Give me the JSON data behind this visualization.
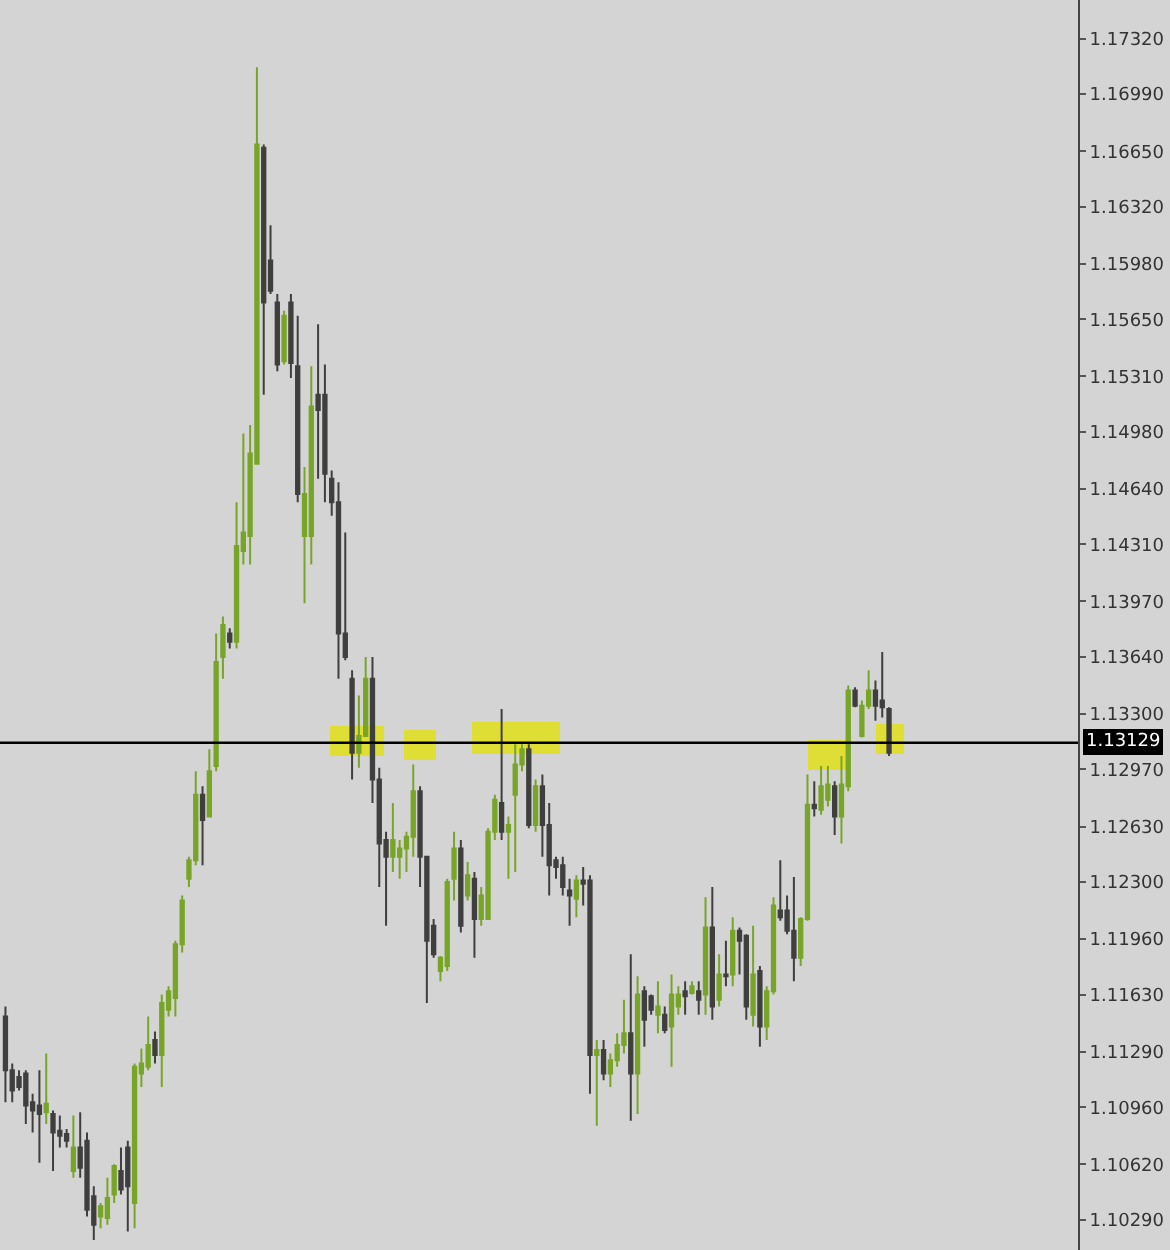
{
  "chart_data": {
    "type": "candlestick",
    "categories": [
      null,
      null,
      null,
      null,
      null,
      null,
      null,
      null,
      null,
      null,
      null,
      null,
      null,
      null,
      null,
      null,
      null,
      null,
      null,
      null,
      null,
      null,
      null,
      null,
      null,
      null,
      null,
      null,
      null,
      null,
      null,
      null,
      null,
      null,
      null,
      null,
      null,
      null,
      null,
      null,
      null,
      null,
      null,
      null,
      null,
      null,
      null,
      null,
      null,
      null,
      null,
      null,
      null,
      null,
      null,
      null,
      null,
      null,
      null,
      null,
      null,
      null,
      null,
      null,
      null,
      null,
      null,
      null,
      null,
      null,
      null,
      null,
      null,
      null,
      null,
      null,
      null,
      null,
      null,
      null,
      null,
      null,
      null,
      null,
      null,
      null,
      null,
      null,
      null,
      null,
      null,
      null,
      null,
      null,
      null,
      null,
      null,
      null,
      null,
      null,
      null,
      null,
      null,
      null,
      null,
      null,
      null,
      null,
      null,
      null,
      null,
      null,
      null,
      null,
      null,
      null,
      null,
      null,
      null,
      null,
      null,
      null,
      null,
      null,
      null,
      null,
      null,
      null,
      null,
      null,
      null,
      null,
      null,
      null,
      null,
      null,
      null,
      null,
      null,
      null,
      null,
      null,
      null,
      null,
      null,
      null,
      null,
      null,
      null,
      null,
      null,
      null,
      null,
      null,
      null,
      null,
      null,
      null
    ],
    "ohlc": [
      [
        1.115,
        1.1156,
        1.1099,
        1.1118
      ],
      [
        1.1118,
        1.1122,
        1.1099,
        1.1106
      ],
      [
        1.1114,
        1.1118,
        1.1106,
        1.1108
      ],
      [
        1.1116,
        1.1118,
        1.1086,
        1.1097
      ],
      [
        1.1099,
        1.1104,
        1.1081,
        1.1094
      ],
      [
        1.1097,
        1.1118,
        1.1063,
        1.1092
      ],
      [
        1.1093,
        1.1128,
        1.1086,
        1.1098
      ],
      [
        1.1092,
        1.1094,
        1.1058,
        1.1081
      ],
      [
        1.1082,
        1.1091,
        1.1072,
        1.1079
      ],
      [
        1.108,
        1.1083,
        1.1072,
        1.1076
      ],
      [
        1.1058,
        1.1091,
        1.1054,
        1.1072
      ],
      [
        1.1072,
        1.1093,
        1.1054,
        1.106
      ],
      [
        1.1076,
        1.1081,
        1.1031,
        1.1035
      ],
      [
        1.1043,
        1.1049,
        1.1017,
        1.1026
      ],
      [
        1.1031,
        1.1039,
        1.1024,
        1.1037
      ],
      [
        1.103,
        1.1054,
        1.1026,
        1.1042
      ],
      [
        1.1044,
        1.1062,
        1.1039,
        1.1061
      ],
      [
        1.1058,
        1.1072,
        1.1044,
        1.1047
      ],
      [
        1.1072,
        1.1076,
        1.1022,
        1.1049
      ],
      [
        1.1039,
        1.1122,
        1.1024,
        1.112
      ],
      [
        1.1116,
        1.1131,
        1.1108,
        1.1122
      ],
      [
        1.112,
        1.115,
        1.1118,
        1.1133
      ],
      [
        1.1136,
        1.1141,
        1.1122,
        1.1127
      ],
      [
        1.1127,
        1.1163,
        1.1108,
        1.1158
      ],
      [
        1.1154,
        1.1168,
        1.115,
        1.1165
      ],
      [
        1.1161,
        1.1195,
        1.115,
        1.1193
      ],
      [
        1.1193,
        1.1222,
        1.1188,
        1.1219
      ],
      [
        1.1232,
        1.1245,
        1.1227,
        1.1243
      ],
      [
        1.1243,
        1.1296,
        1.124,
        1.1282
      ],
      [
        1.1282,
        1.1287,
        1.124,
        1.1267
      ],
      [
        1.1269,
        1.1309,
        1.1269,
        1.1296
      ],
      [
        1.1299,
        1.1378,
        1.1296,
        1.1361
      ],
      [
        1.1364,
        1.1388,
        1.1351,
        1.1383
      ],
      [
        1.1378,
        1.1381,
        1.1369,
        1.1373
      ],
      [
        1.1373,
        1.1456,
        1.1369,
        1.143
      ],
      [
        1.1427,
        1.1497,
        1.1419,
        1.1438
      ],
      [
        1.1436,
        1.1502,
        1.1419,
        1.1485
      ],
      [
        1.1479,
        1.1715,
        1.1479,
        1.1669
      ],
      [
        1.1667,
        1.1669,
        1.152,
        1.1575
      ],
      [
        1.16,
        1.1621,
        1.158,
        1.1582
      ],
      [
        1.1575,
        1.158,
        1.1534,
        1.1538
      ],
      [
        1.154,
        1.157,
        1.1538,
        1.1567
      ],
      [
        1.1575,
        1.158,
        1.153,
        1.1539
      ],
      [
        1.1537,
        1.1567,
        1.1456,
        1.1461
      ],
      [
        1.1436,
        1.1477,
        1.1396,
        1.1461
      ],
      [
        1.1436,
        1.1537,
        1.1419,
        1.1513
      ],
      [
        1.152,
        1.1562,
        1.147,
        1.1511
      ],
      [
        1.152,
        1.1538,
        1.1456,
        1.1473
      ],
      [
        1.147,
        1.1475,
        1.1448,
        1.1456
      ],
      [
        1.1456,
        1.1468,
        1.1351,
        1.1378
      ],
      [
        1.1378,
        1.1438,
        1.1362,
        1.1364
      ],
      [
        1.1351,
        1.1356,
        1.1291,
        1.1307
      ],
      [
        1.1307,
        1.1341,
        1.1298,
        1.1317
      ],
      [
        1.1317,
        1.1364,
        1.1317,
        1.1351
      ],
      [
        1.1351,
        1.1364,
        1.1277,
        1.1291
      ],
      [
        1.1291,
        1.1298,
        1.1227,
        1.1253
      ],
      [
        1.1255,
        1.126,
        1.1204,
        1.1245
      ],
      [
        1.1245,
        1.1277,
        1.1236,
        1.1255
      ],
      [
        1.1245,
        1.1255,
        1.1232,
        1.125
      ],
      [
        1.125,
        1.126,
        1.1236,
        1.1257
      ],
      [
        1.1257,
        1.13,
        1.1245,
        1.1284
      ],
      [
        1.1284,
        1.1287,
        1.1227,
        1.1245
      ],
      [
        1.1245,
        1.1245,
        1.1158,
        1.1195
      ],
      [
        1.1204,
        1.1208,
        1.1185,
        1.1187
      ],
      [
        1.1177,
        1.1186,
        1.1171,
        1.1185
      ],
      [
        1.118,
        1.1232,
        1.1177,
        1.123
      ],
      [
        1.1232,
        1.126,
        1.1219,
        1.125
      ],
      [
        1.125,
        1.1255,
        1.12,
        1.1204
      ],
      [
        1.1222,
        1.1242,
        1.1219,
        1.1234
      ],
      [
        1.1232,
        1.1236,
        1.1185,
        1.1208
      ],
      [
        1.1208,
        1.1227,
        1.1204,
        1.1222
      ],
      [
        1.1208,
        1.1262,
        1.1208,
        1.126
      ],
      [
        1.126,
        1.1282,
        1.1255,
        1.1279
      ],
      [
        1.1277,
        1.1333,
        1.1255,
        1.126
      ],
      [
        1.126,
        1.1269,
        1.1232,
        1.1264
      ],
      [
        1.1282,
        1.1312,
        1.1236,
        1.13
      ],
      [
        1.13,
        1.1312,
        1.1296,
        1.1309
      ],
      [
        1.1309,
        1.1312,
        1.1262,
        1.1264
      ],
      [
        1.1264,
        1.1291,
        1.126,
        1.1287
      ],
      [
        1.1287,
        1.1294,
        1.1245,
        1.1264
      ],
      [
        1.1264,
        1.1277,
        1.1222,
        1.124
      ],
      [
        1.1243,
        1.1245,
        1.1232,
        1.1239
      ],
      [
        1.124,
        1.1245,
        1.1222,
        1.1227
      ],
      [
        1.1225,
        1.1232,
        1.1204,
        1.1222
      ],
      [
        1.122,
        1.1234,
        1.1209,
        1.1231
      ],
      [
        1.1231,
        1.1239,
        1.1216,
        1.1229
      ],
      [
        1.1231,
        1.1234,
        1.1104,
        1.1127
      ],
      [
        1.1127,
        1.1136,
        1.1085,
        1.113
      ],
      [
        1.113,
        1.1136,
        1.1112,
        1.1116
      ],
      [
        1.1116,
        1.1128,
        1.1108,
        1.1124
      ],
      [
        1.1124,
        1.114,
        1.112,
        1.1133
      ],
      [
        1.1133,
        1.116,
        1.1128,
        1.114
      ],
      [
        1.114,
        1.1187,
        1.1088,
        1.1116
      ],
      [
        1.1116,
        1.1174,
        1.1092,
        1.1163
      ],
      [
        1.1165,
        1.1168,
        1.1132,
        1.1148
      ],
      [
        1.1162,
        1.1163,
        1.1151,
        1.1154
      ],
      [
        1.1151,
        1.1171,
        1.114,
        1.1156
      ],
      [
        1.1151,
        1.1156,
        1.114,
        1.1142
      ],
      [
        1.1144,
        1.1175,
        1.112,
        1.1163
      ],
      [
        1.1156,
        1.1168,
        1.1151,
        1.1163
      ],
      [
        1.1165,
        1.1171,
        1.1151,
        1.1162
      ],
      [
        1.1164,
        1.1171,
        1.1163,
        1.1168
      ],
      [
        1.1165,
        1.1171,
        1.1151,
        1.116
      ],
      [
        1.1163,
        1.1221,
        1.1151,
        1.1203
      ],
      [
        1.1203,
        1.1227,
        1.1148,
        1.1156
      ],
      [
        1.116,
        1.1187,
        1.1156,
        1.1175
      ],
      [
        1.1175,
        1.1195,
        1.1168,
        1.1174
      ],
      [
        1.1175,
        1.1209,
        1.1168,
        1.1201
      ],
      [
        1.1201,
        1.1203,
        1.1175,
        1.1195
      ],
      [
        1.1198,
        1.1199,
        1.1148,
        1.1156
      ],
      [
        1.1151,
        1.1204,
        1.1144,
        1.1175
      ],
      [
        1.1177,
        1.118,
        1.1132,
        1.1144
      ],
      [
        1.1144,
        1.1168,
        1.1136,
        1.1165
      ],
      [
        1.1165,
        1.1221,
        1.1163,
        1.1216
      ],
      [
        1.1213,
        1.1243,
        1.1207,
        1.1209
      ],
      [
        1.1213,
        1.1222,
        1.1199,
        1.1201
      ],
      [
        1.1201,
        1.1233,
        1.1171,
        1.1185
      ],
      [
        1.1185,
        1.1209,
        1.118,
        1.1208
      ],
      [
        1.1208,
        1.1294,
        1.1207,
        1.1276
      ],
      [
        1.1276,
        1.129,
        1.1269,
        1.1274
      ],
      [
        1.1273,
        1.1299,
        1.127,
        1.1287
      ],
      [
        1.1279,
        1.1299,
        1.1275,
        1.1288
      ],
      [
        1.1287,
        1.129,
        1.1258,
        1.1269
      ],
      [
        1.1269,
        1.1305,
        1.1253,
        1.1288
      ],
      [
        1.1287,
        1.1347,
        1.1284,
        1.1344
      ],
      [
        1.1344,
        1.1346,
        1.1334,
        1.1335
      ],
      [
        1.1317,
        1.1338,
        1.1316,
        1.1335
      ],
      [
        1.1335,
        1.1356,
        1.1333,
        1.1344
      ],
      [
        1.1344,
        1.135,
        1.1326,
        1.1335
      ],
      [
        1.1338,
        1.1367,
        1.1328,
        1.1334
      ],
      [
        1.1333,
        1.1334,
        1.1305,
        1.1307
      ],
      null,
      null,
      null,
      null,
      null,
      null,
      null,
      null,
      null,
      null,
      null,
      null,
      null,
      null,
      null,
      null,
      null,
      null,
      null,
      null,
      null,
      null,
      null,
      null,
      null,
      null,
      null
    ],
    "colors": [
      "#3f3f3f",
      "#3f3f3f",
      "#3f3f3f",
      "#3f3f3f",
      "#3f3f3f",
      "#3f3f3f",
      "#78a527",
      "#3f3f3f",
      "#3f3f3f",
      "#3f3f3f",
      "#78a527",
      "#3f3f3f",
      "#3f3f3f",
      "#3f3f3f",
      "#78a527",
      "#78a527",
      "#78a527",
      "#3f3f3f",
      "#3f3f3f",
      "#78a527",
      "#78a527",
      "#78a527",
      "#3f3f3f",
      "#78a527",
      "#78a527",
      "#78a527",
      "#78a527",
      "#78a527",
      "#78a527",
      "#3f3f3f",
      "#78a527",
      "#78a527",
      "#78a527",
      "#3f3f3f",
      "#78a527",
      "#78a527",
      "#78a527",
      "#78a527",
      "#3f3f3f",
      "#3f3f3f",
      "#3f3f3f",
      "#78a527",
      "#3f3f3f",
      "#3f3f3f",
      "#78a527",
      "#78a527",
      "#3f3f3f",
      "#3f3f3f",
      "#3f3f3f",
      "#3f3f3f",
      "#3f3f3f",
      "#3f3f3f",
      "#78a527",
      "#78a527",
      "#3f3f3f",
      "#3f3f3f",
      "#3f3f3f",
      "#78a527",
      "#78a527",
      "#78a527",
      "#78a527",
      "#3f3f3f",
      "#3f3f3f",
      "#3f3f3f",
      "#78a527",
      "#78a527",
      "#78a527",
      "#3f3f3f",
      "#78a527",
      "#3f3f3f",
      "#78a527",
      "#78a527",
      "#78a527",
      "#3f3f3f",
      "#78a527",
      "#78a527",
      "#78a527",
      "#3f3f3f",
      "#78a527",
      "#3f3f3f",
      "#3f3f3f",
      "#3f3f3f",
      "#3f3f3f",
      "#3f3f3f",
      "#78a527",
      "#3f3f3f",
      "#3f3f3f",
      "#78a527",
      "#3f3f3f",
      "#78a527",
      "#78a527",
      "#78a527",
      "#3f3f3f",
      "#78a527",
      "#3f3f3f",
      "#3f3f3f",
      "#78a527",
      "#3f3f3f",
      "#78a527",
      "#78a527",
      "#3f3f3f",
      "#78a527",
      "#3f3f3f",
      "#78a527",
      "#3f3f3f",
      "#78a527",
      "#3f3f3f",
      "#78a527",
      "#3f3f3f",
      "#3f3f3f",
      "#78a527",
      "#3f3f3f",
      "#78a527",
      "#78a527",
      "#3f3f3f",
      "#3f3f3f",
      "#3f3f3f",
      "#78a527",
      "#78a527",
      "#3f3f3f",
      "#78a527",
      "#78a527",
      "#3f3f3f",
      "#78a527",
      "#78a527",
      "#3f3f3f",
      "#78a527",
      "#78a527",
      "#3f3f3f",
      "#3f3f3f",
      "#3f3f3f",
      null,
      null,
      null,
      null,
      null,
      null,
      null,
      null,
      null,
      null,
      null,
      null,
      null,
      null,
      null,
      null,
      null,
      null,
      null,
      null,
      null,
      null,
      null,
      null,
      null,
      null,
      null
    ],
    "ylim": [
      1.1011,
      1.1755
    ],
    "yticks": [
      {
        "value": 1.1029,
        "label": "1.10290"
      },
      {
        "value": 1.1062,
        "label": "1.10620"
      },
      {
        "value": 1.1096,
        "label": "1.10960"
      },
      {
        "value": 1.1129,
        "label": "1.11290"
      },
      {
        "value": 1.1163,
        "label": "1.11630"
      },
      {
        "value": 1.1196,
        "label": "1.11960"
      },
      {
        "value": 1.123,
        "label": "1.12300"
      },
      {
        "value": 1.1263,
        "label": "1.12630"
      },
      {
        "value": 1.1297,
        "label": "1.12970"
      },
      {
        "value": 1.133,
        "label": "1.13300"
      },
      {
        "value": 1.1364,
        "label": "1.13640"
      },
      {
        "value": 1.1397,
        "label": "1.13970"
      },
      {
        "value": 1.1431,
        "label": "1.14310"
      },
      {
        "value": 1.1464,
        "label": "1.14640"
      },
      {
        "value": 1.1498,
        "label": "1.14980"
      },
      {
        "value": 1.1531,
        "label": "1.15310"
      },
      {
        "value": 1.1565,
        "label": "1.15650"
      },
      {
        "value": 1.1598,
        "label": "1.15980"
      },
      {
        "value": 1.1632,
        "label": "1.16320"
      },
      {
        "value": 1.1665,
        "label": "1.16650"
      },
      {
        "value": 1.1699,
        "label": "1.16990"
      },
      {
        "value": 1.1732,
        "label": "1.17320"
      }
    ],
    "tick_labels": "y",
    "ref_lines": [
      {
        "axis": "y",
        "value": 1.13129,
        "label": "1.13129",
        "color": "#000000"
      }
    ]
  }
}
